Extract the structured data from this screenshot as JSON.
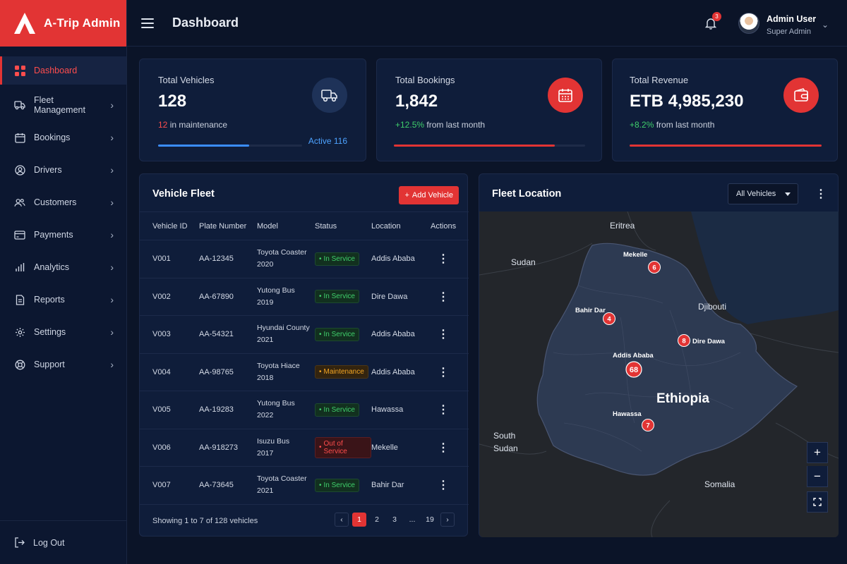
{
  "brand": {
    "name": "A-Trip Admin"
  },
  "sidebar": {
    "items": [
      {
        "label": "Dashboard",
        "icon": "grid-icon"
      },
      {
        "label": "Fleet Management",
        "icon": "truck-icon"
      },
      {
        "label": "Bookings",
        "icon": "calendar-icon"
      },
      {
        "label": "Drivers",
        "icon": "user-circle-icon"
      },
      {
        "label": "Customers",
        "icon": "users-icon"
      },
      {
        "label": "Payments",
        "icon": "credit-card-icon"
      },
      {
        "label": "Analytics",
        "icon": "bar-chart-icon"
      },
      {
        "label": "Reports",
        "icon": "document-icon"
      },
      {
        "label": "Settings",
        "icon": "gear-icon"
      },
      {
        "label": "Support",
        "icon": "lifebuoy-icon"
      }
    ],
    "logout": "Log Out"
  },
  "header": {
    "title": "Dashboard",
    "notifications": "3",
    "user_name": "Admin User",
    "user_role": "Super Admin"
  },
  "stats": {
    "vehicles": {
      "label": "Total Vehicles",
      "value": "128",
      "maint_count": "12",
      "maint_text": "in maintenance",
      "active": "Active 116",
      "progress": 0.63
    },
    "bookings": {
      "label": "Total Bookings",
      "value": "1,842",
      "change": "+12.5%",
      "change_text": "from last month",
      "progress": 0.84
    },
    "revenue": {
      "label": "Total Revenue",
      "value": "ETB 4,985,230",
      "change": "+8.2%",
      "change_text": "from last month",
      "progress": 1.0
    }
  },
  "colors": {
    "accent": "#e23434",
    "success": "#3fcf6b",
    "warning": "#f5a623",
    "info": "#4da2ff"
  },
  "fleet": {
    "title": "Vehicle Fleet",
    "add_label": "Add Vehicle",
    "columns": [
      "Vehicle ID",
      "Plate Number",
      "Model",
      "Status",
      "Location",
      "Actions"
    ],
    "rows": [
      {
        "id": "V001",
        "plate": "AA-12345",
        "model_1": "Toyota Coaster",
        "model_2": "2020",
        "status": "In Service",
        "location": "Addis Ababa"
      },
      {
        "id": "V002",
        "plate": "AA-67890",
        "model_1": "Yutong Bus",
        "model_2": "2019",
        "status": "In Service",
        "location": "Dire Dawa"
      },
      {
        "id": "V003",
        "plate": "AA-54321",
        "model_1": "Hyundai County",
        "model_2": "2021",
        "status": "In Service",
        "location": "Addis Ababa"
      },
      {
        "id": "V004",
        "plate": "AA-98765",
        "model_1": "Toyota Hiace",
        "model_2": "2018",
        "status": "Maintenance",
        "location": "Addis Ababa"
      },
      {
        "id": "V005",
        "plate": "AA-19283",
        "model_1": "Yutong Bus",
        "model_2": "2022",
        "status": "In Service",
        "location": "Hawassa"
      },
      {
        "id": "V006",
        "plate": "AA-918273",
        "model_1": "Isuzu Bus",
        "model_2": "2017",
        "status": "Out of Service",
        "location": "Mekelle"
      },
      {
        "id": "V007",
        "plate": "AA-73645",
        "model_1": "Toyota Coaster",
        "model_2": "2021",
        "status": "In Service",
        "location": "Bahir Dar"
      }
    ],
    "showing": "Showing 1 to 7 of 128 vehicles",
    "pages": [
      "1",
      "2",
      "3",
      "...",
      "19"
    ]
  },
  "location": {
    "title": "Fleet Location",
    "filter": "All Vehicles",
    "countries": [
      "Eritrea",
      "Sudan",
      "Djibouti",
      "Ethiopia",
      "South",
      "Sudan",
      "Somalia"
    ],
    "cities": [
      {
        "name": "Mekelle",
        "count": "6"
      },
      {
        "name": "Bahir Dar",
        "count": "4"
      },
      {
        "name": "Dire Dawa",
        "count": "8"
      },
      {
        "name": "Addis Ababa",
        "count": "68"
      },
      {
        "name": "Hawassa",
        "count": "7"
      }
    ]
  }
}
